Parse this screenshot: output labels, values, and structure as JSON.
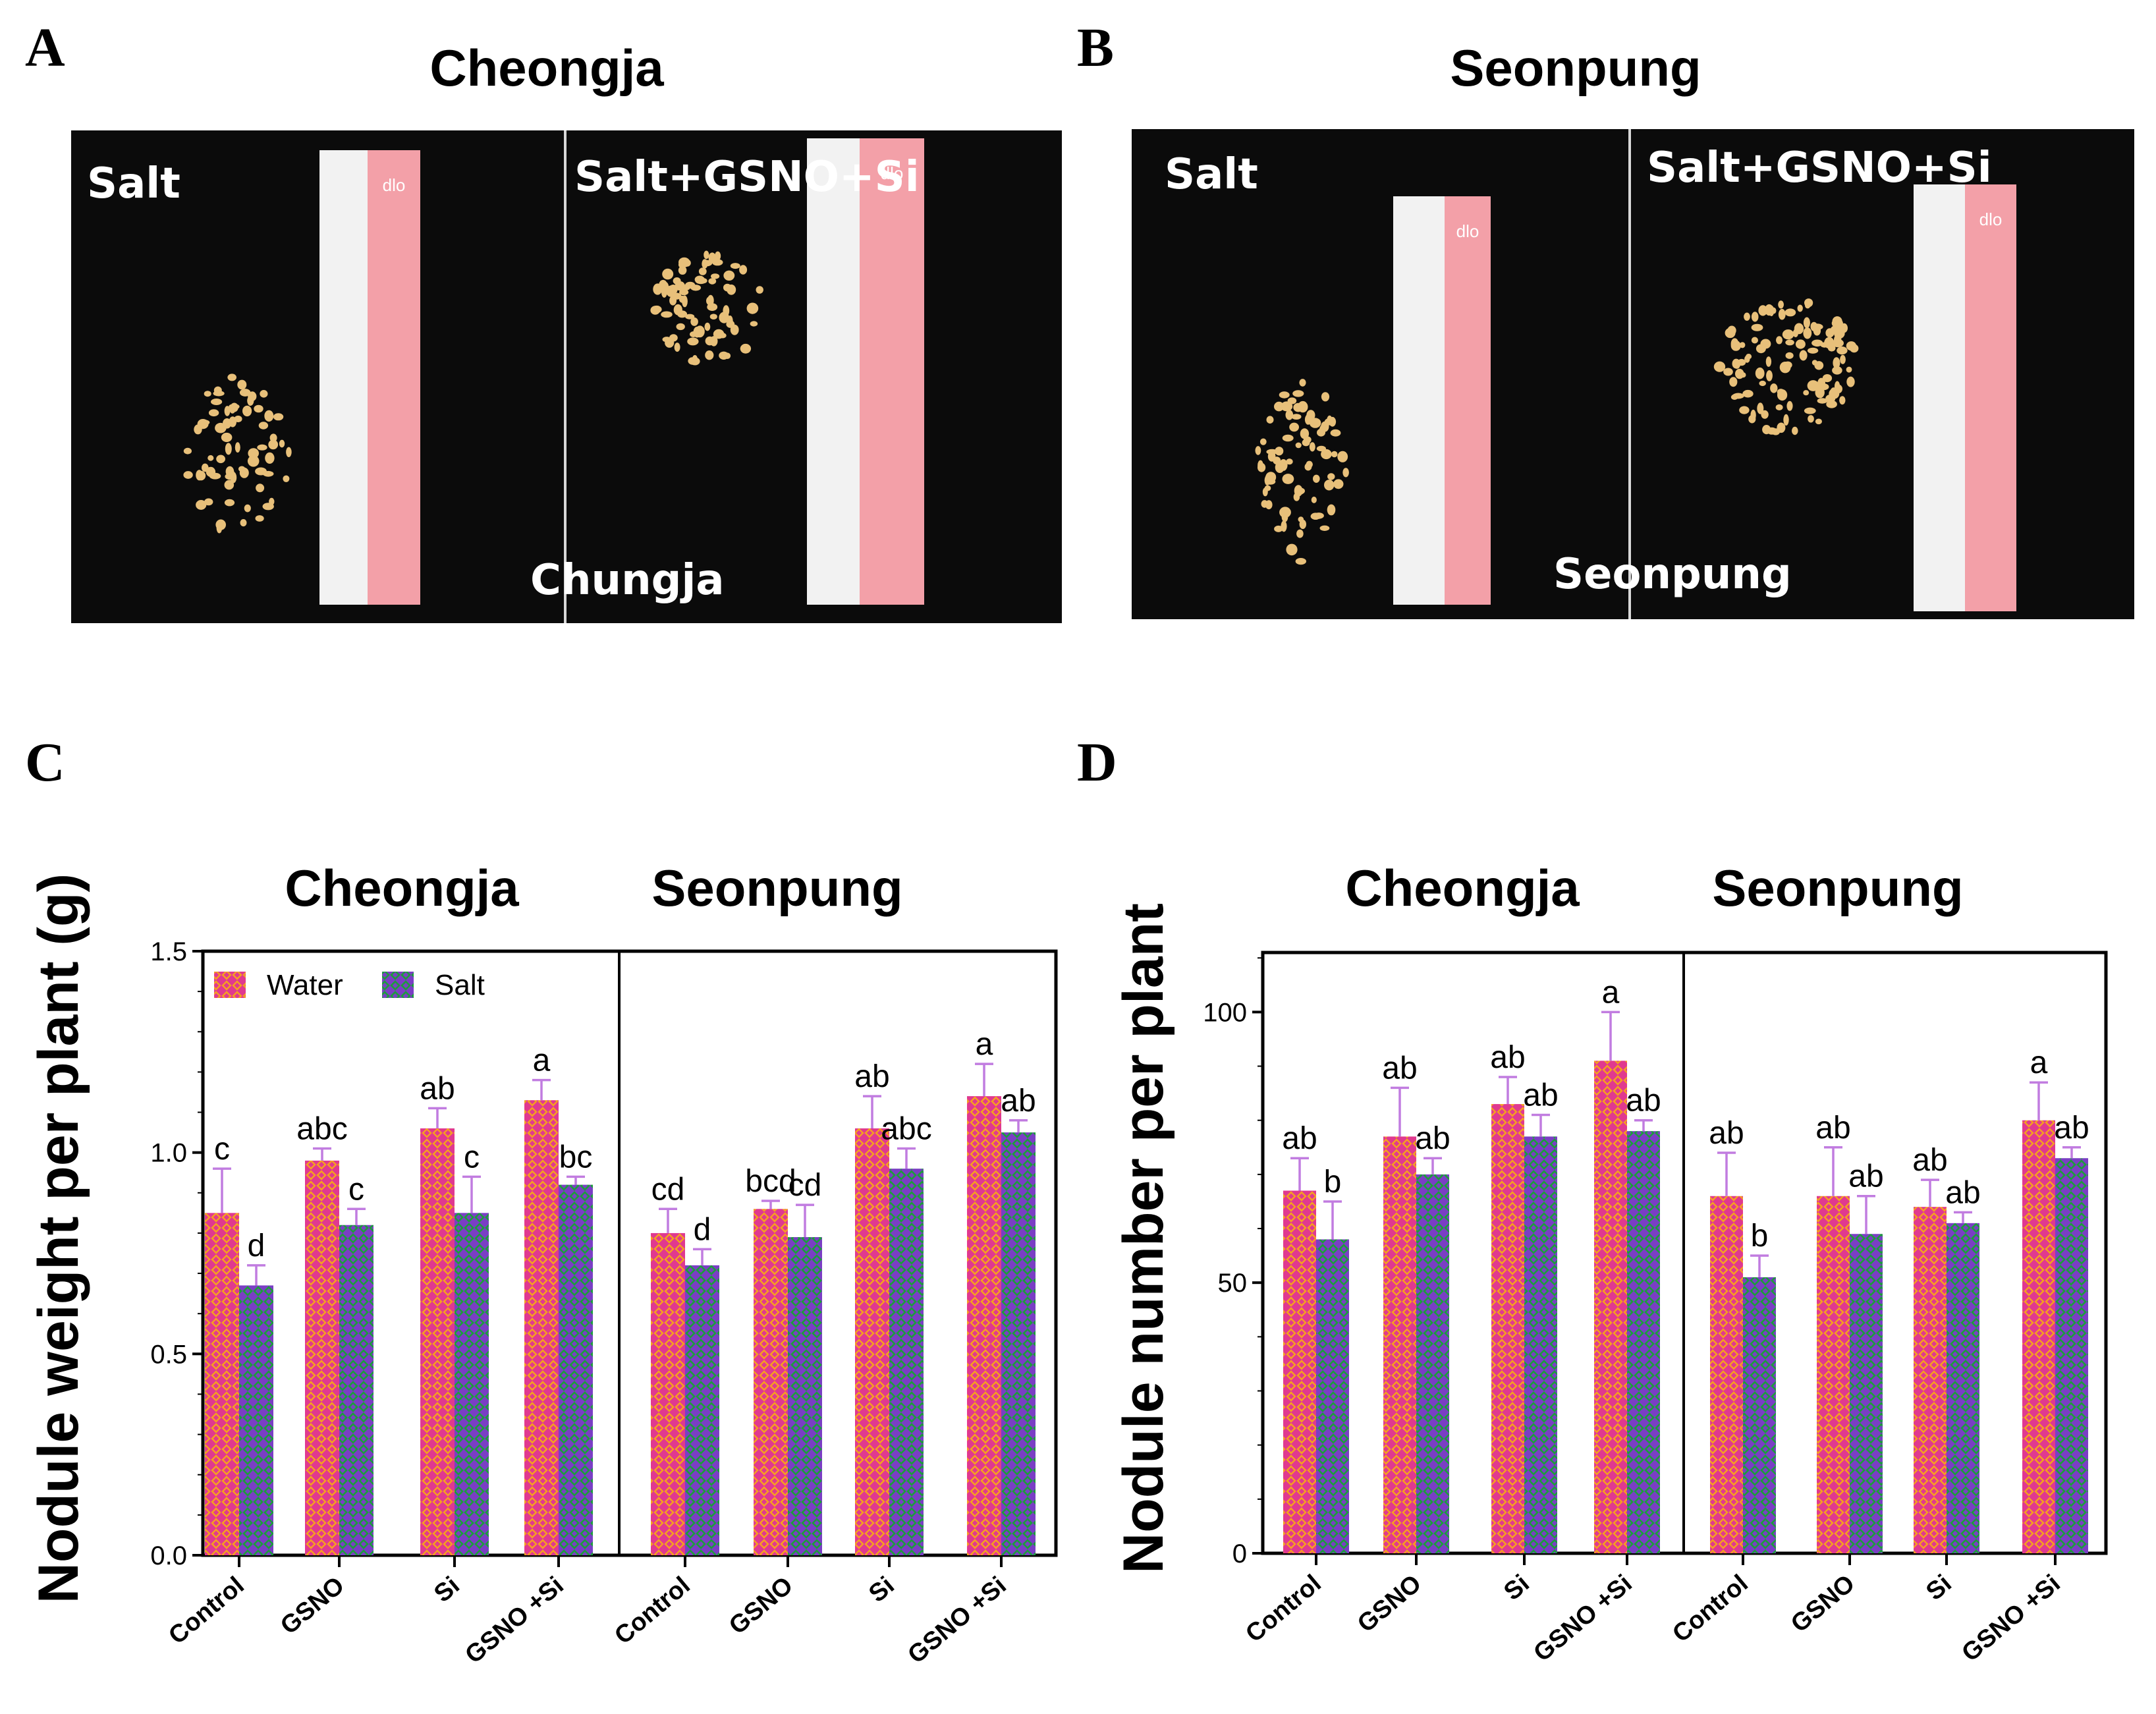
{
  "panels": {
    "A": {
      "label": "A",
      "title": "Cheongja",
      "overlay_left": "Salt",
      "overlay_right": "Salt+GSNO+Si",
      "overlay_bottom": "Chungja",
      "ruler_text": "dlo"
    },
    "B": {
      "label": "B",
      "title": "Seonpung",
      "overlay_left": "Salt",
      "overlay_right": "Salt+GSNO+Si",
      "overlay_bottom": "Seonpung",
      "ruler_text": "dlo"
    },
    "C": {
      "label": "C"
    },
    "D": {
      "label": "D"
    }
  },
  "colors": {
    "water": "#e0398f",
    "water_pattern": "#f5a020",
    "salt": "#7a3fc4",
    "salt_pattern": "#1b9e3a",
    "error_bar": "#c17ce0",
    "photo_bg": "#0b0b0b",
    "nodule": "#e8c07a",
    "ruler_white": "#f2f2f2",
    "ruler_pink": "#f3a0a8"
  },
  "chart_data": [
    {
      "type": "bar",
      "panel": "C",
      "ylabel": "Nodule weight per plant (g)",
      "ylim": [
        0,
        1.5
      ],
      "yticks": [
        "0.0",
        "0.5",
        "1.0",
        "1.5"
      ],
      "legend": {
        "position": "top-left",
        "entries": [
          "Water",
          "Salt"
        ]
      },
      "groups": [
        {
          "name": "Cheongja",
          "categories": [
            "Control",
            "GSNO",
            "Si",
            "GSNO +Si"
          ],
          "series": [
            {
              "name": "Water",
              "values": [
                0.85,
                0.98,
                1.06,
                1.13
              ],
              "errors": [
                0.11,
                0.03,
                0.05,
                0.05
              ],
              "letters": [
                "c",
                "abc",
                "ab",
                "a"
              ]
            },
            {
              "name": "Salt",
              "values": [
                0.67,
                0.82,
                0.85,
                0.92
              ],
              "errors": [
                0.05,
                0.04,
                0.09,
                0.02
              ],
              "letters": [
                "d",
                "c",
                "c",
                "bc"
              ]
            }
          ]
        },
        {
          "name": "Seonpung",
          "categories": [
            "Control",
            "GSNO",
            "Si",
            "GSNO +Si"
          ],
          "series": [
            {
              "name": "Water",
              "values": [
                0.8,
                0.86,
                1.06,
                1.14
              ],
              "errors": [
                0.06,
                0.02,
                0.08,
                0.08
              ],
              "letters": [
                "cd",
                "bcd",
                "ab",
                "a"
              ]
            },
            {
              "name": "Salt",
              "values": [
                0.72,
                0.79,
                0.96,
                1.05
              ],
              "errors": [
                0.04,
                0.08,
                0.05,
                0.03
              ],
              "letters": [
                "d",
                "cd",
                "abc",
                "ab"
              ]
            }
          ]
        }
      ]
    },
    {
      "type": "bar",
      "panel": "D",
      "ylabel": "Nodule number per plant",
      "ylim": [
        0,
        111
      ],
      "yticks": [
        "0",
        "50",
        "100"
      ],
      "groups": [
        {
          "name": "Cheongja",
          "categories": [
            "Control",
            "GSNO",
            "Si",
            "GSNO +Si"
          ],
          "series": [
            {
              "name": "Water",
              "values": [
                67,
                77,
                83,
                91
              ],
              "errors": [
                6,
                9,
                5,
                9
              ],
              "letters": [
                "ab",
                "ab",
                "ab",
                "a"
              ]
            },
            {
              "name": "Salt",
              "values": [
                58,
                70,
                77,
                78
              ],
              "errors": [
                7,
                3,
                4,
                2
              ],
              "letters": [
                "b",
                "ab",
                "ab",
                "ab"
              ]
            }
          ]
        },
        {
          "name": "Seonpung",
          "categories": [
            "Control",
            "GSNO",
            "Si",
            "GSNO +Si"
          ],
          "series": [
            {
              "name": "Water",
              "values": [
                66,
                66,
                64,
                80
              ],
              "errors": [
                8,
                9,
                5,
                7
              ],
              "letters": [
                "ab",
                "ab",
                "ab",
                "a"
              ]
            },
            {
              "name": "Salt",
              "values": [
                51,
                59,
                61,
                73
              ],
              "errors": [
                4,
                7,
                2,
                2
              ],
              "letters": [
                "b",
                "ab",
                "ab",
                "ab"
              ]
            }
          ]
        }
      ]
    }
  ]
}
